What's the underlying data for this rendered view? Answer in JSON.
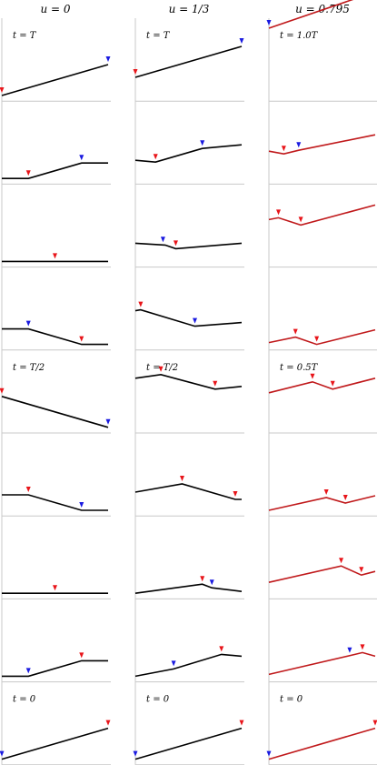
{
  "columns": [
    {
      "header": "u = 0",
      "line_color": "#000000",
      "panels": [
        {
          "time_label": "t = T",
          "line": [
            [
              0,
              0.0
            ],
            [
              1,
              0.34
            ]
          ],
          "markers": [
            {
              "x": 0,
              "c": "red"
            },
            {
              "x": 1,
              "c": "blue"
            }
          ]
        },
        {
          "time_label": "",
          "line": [
            [
              0,
              0.0
            ],
            [
              0.25,
              0.0
            ],
            [
              0.75,
              0.17
            ],
            [
              1,
              0.17
            ]
          ],
          "markers": [
            {
              "x": 0.25,
              "c": "red"
            },
            {
              "x": 0.75,
              "c": "blue"
            }
          ]
        },
        {
          "time_label": "",
          "line": [
            [
              0,
              0.0
            ],
            [
              1,
              0.0
            ]
          ],
          "markers": [
            {
              "x": 0.5,
              "c": "red"
            }
          ]
        },
        {
          "time_label": "",
          "line": [
            [
              0,
              0.17
            ],
            [
              0.25,
              0.17
            ],
            [
              0.75,
              0.0
            ],
            [
              1,
              0.0
            ]
          ],
          "markers": [
            {
              "x": 0.25,
              "c": "blue"
            },
            {
              "x": 0.75,
              "c": "red"
            }
          ]
        },
        {
          "time_label": "t = T/2",
          "line": [
            [
              0,
              0.34
            ],
            [
              1,
              0.0
            ]
          ],
          "markers": [
            {
              "x": 0,
              "c": "red"
            },
            {
              "x": 1,
              "c": "blue"
            }
          ]
        },
        {
          "time_label": "",
          "line": [
            [
              0,
              0.17
            ],
            [
              0.25,
              0.17
            ],
            [
              0.75,
              0.0
            ],
            [
              1,
              0.0
            ]
          ],
          "markers": [
            {
              "x": 0.25,
              "c": "red"
            },
            {
              "x": 0.75,
              "c": "blue"
            }
          ]
        },
        {
          "time_label": "",
          "line": [
            [
              0,
              0.0
            ],
            [
              1,
              0.0
            ]
          ],
          "markers": [
            {
              "x": 0.5,
              "c": "red"
            }
          ]
        },
        {
          "time_label": "",
          "line": [
            [
              0,
              0.0
            ],
            [
              0.25,
              0.0
            ],
            [
              0.75,
              0.17
            ],
            [
              1,
              0.17
            ]
          ],
          "markers": [
            {
              "x": 0.25,
              "c": "blue"
            },
            {
              "x": 0.75,
              "c": "red"
            }
          ]
        },
        {
          "time_label": "t = 0",
          "line": [
            [
              0,
              0.0
            ],
            [
              1,
              0.34
            ]
          ],
          "markers": [
            {
              "x": 0,
              "c": "blue"
            },
            {
              "x": 1,
              "c": "red"
            }
          ]
        }
      ]
    },
    {
      "header": "u = 1/3",
      "line_color": "#000000",
      "panels": [
        {
          "time_label": "t = T",
          "line": [
            [
              0,
              0.2
            ],
            [
              1,
              0.54
            ]
          ],
          "markers": [
            {
              "x": 0,
              "c": "red"
            },
            {
              "x": 1,
              "c": "blue"
            }
          ]
        },
        {
          "time_label": "",
          "line": [
            [
              0,
              0.2
            ],
            [
              0.19,
              0.18
            ],
            [
              0.63,
              0.33
            ],
            [
              1,
              0.37
            ]
          ],
          "markers": [
            {
              "x": 0.19,
              "c": "red"
            },
            {
              "x": 0.63,
              "c": "blue"
            }
          ]
        },
        {
          "time_label": "",
          "line": [
            [
              0,
              0.2
            ],
            [
              0.28,
              0.18
            ],
            [
              0.38,
              0.14
            ],
            [
              1,
              0.2
            ]
          ],
          "markers": [
            {
              "x": 0.26,
              "c": "blue"
            },
            {
              "x": 0.38,
              "c": "red"
            }
          ]
        },
        {
          "time_label": "",
          "line": [
            [
              0,
              0.37
            ],
            [
              0.05,
              0.38
            ],
            [
              0.56,
              0.2
            ],
            [
              1,
              0.24
            ]
          ],
          "markers": [
            {
              "x": 0.05,
              "c": "red"
            },
            {
              "x": 0.56,
              "c": "blue"
            }
          ]
        },
        {
          "time_label": "t = T/2",
          "line": [
            [
              0,
              0.54
            ],
            [
              0.24,
              0.58
            ],
            [
              0.75,
              0.42
            ],
            [
              1,
              0.45
            ]
          ],
          "markers": [
            {
              "x": 0.24,
              "c": "red"
            },
            {
              "x": 0.75,
              "c": "red"
            }
          ]
        },
        {
          "time_label": "",
          "line": [
            [
              0,
              0.2
            ],
            [
              0.44,
              0.29
            ],
            [
              0.94,
              0.12
            ],
            [
              1,
              0.12
            ]
          ],
          "markers": [
            {
              "x": 0.44,
              "c": "red"
            },
            {
              "x": 0.94,
              "c": "red"
            }
          ]
        },
        {
          "time_label": "",
          "line": [
            [
              0,
              0.0
            ],
            [
              0.63,
              0.1
            ],
            [
              0.72,
              0.06
            ],
            [
              1,
              0.02
            ]
          ],
          "markers": [
            {
              "x": 0.63,
              "c": "red"
            },
            {
              "x": 0.72,
              "c": "blue"
            }
          ]
        },
        {
          "time_label": "",
          "line": [
            [
              0,
              0.0
            ],
            [
              0.36,
              0.08
            ],
            [
              0.81,
              0.24
            ],
            [
              1,
              0.22
            ]
          ],
          "markers": [
            {
              "x": 0.36,
              "c": "blue"
            },
            {
              "x": 0.81,
              "c": "red"
            }
          ]
        },
        {
          "time_label": "t = 0",
          "line": [
            [
              0,
              0.0
            ],
            [
              1,
              0.34
            ]
          ],
          "markers": [
            {
              "x": 0,
              "c": "blue"
            },
            {
              "x": 1,
              "c": "red"
            }
          ]
        }
      ]
    },
    {
      "header": "u = 0.795",
      "line_color": "#c0191b",
      "panels": [
        {
          "time_label": "t = 1.0T",
          "line": [
            [
              0,
              0.74
            ],
            [
              1,
              1.14
            ]
          ],
          "markers": [
            {
              "x": 0,
              "c": "blue"
            },
            {
              "x": 1,
              "c": "red"
            }
          ]
        },
        {
          "time_label": "",
          "line": [
            [
              0,
              0.3
            ],
            [
              0.14,
              0.27
            ],
            [
              0.28,
              0.31
            ],
            [
              1,
              0.48
            ]
          ],
          "markers": [
            {
              "x": 0.14,
              "c": "red"
            },
            {
              "x": 0.28,
              "c": "blue"
            }
          ]
        },
        {
          "time_label": "",
          "line": [
            [
              0,
              0.46
            ],
            [
              0.09,
              0.48
            ],
            [
              0.3,
              0.4
            ],
            [
              1,
              0.62
            ]
          ],
          "markers": [
            {
              "x": 0.09,
              "c": "red"
            },
            {
              "x": 0.3,
              "c": "red"
            }
          ]
        },
        {
          "time_label": "",
          "line": [
            [
              0,
              0.02
            ],
            [
              0.25,
              0.08
            ],
            [
              0.45,
              0.0
            ],
            [
              1,
              0.16
            ]
          ],
          "markers": [
            {
              "x": 0.25,
              "c": "red"
            },
            {
              "x": 0.45,
              "c": "red"
            }
          ]
        },
        {
          "time_label": "t = 0.5T",
          "line": [
            [
              0,
              0.38
            ],
            [
              0.41,
              0.5
            ],
            [
              0.6,
              0.42
            ],
            [
              1,
              0.54
            ]
          ],
          "markers": [
            {
              "x": 0.41,
              "c": "red"
            },
            {
              "x": 0.6,
              "c": "red"
            }
          ]
        },
        {
          "time_label": "",
          "line": [
            [
              0,
              0.0
            ],
            [
              0.54,
              0.14
            ],
            [
              0.72,
              0.08
            ],
            [
              1,
              0.16
            ]
          ],
          "markers": [
            {
              "x": 0.54,
              "c": "red"
            },
            {
              "x": 0.72,
              "c": "red"
            }
          ]
        },
        {
          "time_label": "",
          "line": [
            [
              0,
              0.12
            ],
            [
              0.68,
              0.3
            ],
            [
              0.87,
              0.2
            ],
            [
              1,
              0.24
            ]
          ],
          "markers": [
            {
              "x": 0.68,
              "c": "red"
            },
            {
              "x": 0.87,
              "c": "red"
            }
          ]
        },
        {
          "time_label": "",
          "line": [
            [
              0,
              0.02
            ],
            [
              0.81,
              0.24
            ],
            [
              0.88,
              0.26
            ],
            [
              1,
              0.22
            ]
          ],
          "markers": [
            {
              "x": 0.76,
              "c": "blue"
            },
            {
              "x": 0.88,
              "c": "red"
            }
          ]
        },
        {
          "time_label": "t = 0",
          "line": [
            [
              0,
              0.0
            ],
            [
              1,
              0.34
            ]
          ],
          "markers": [
            {
              "x": 0,
              "c": "blue"
            },
            {
              "x": 1,
              "c": "red"
            }
          ]
        }
      ]
    }
  ],
  "colors": {
    "red_marker": "#e8151a",
    "blue_marker": "#1a1ae0",
    "axis": "#c8c8c8",
    "line_black": "#000000"
  }
}
